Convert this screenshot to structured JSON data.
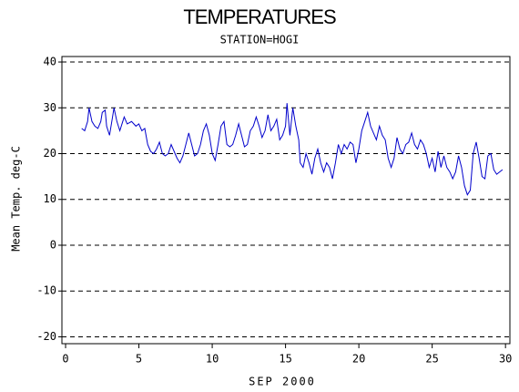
{
  "chart_data": {
    "type": "line",
    "title": "TEMPERATURES",
    "subtitle": "STATION=HOGI",
    "x_label": "SEP 2000",
    "y_label": "Mean Temp. deg-C",
    "xlim": [
      -0.25,
      30.3
    ],
    "ylim": [
      -21.5,
      41.2
    ],
    "xticks": [
      0,
      5,
      10,
      15,
      20,
      25,
      30
    ],
    "yticks": [
      -20,
      -10,
      0,
      10,
      20,
      30,
      40
    ],
    "grid": true,
    "x": [
      1.1,
      1.3,
      1.5,
      1.6,
      1.8,
      2.0,
      2.2,
      2.4,
      2.5,
      2.7,
      2.8,
      3.0,
      3.2,
      3.3,
      3.5,
      3.7,
      3.9,
      4.0,
      4.2,
      4.5,
      4.8,
      5.0,
      5.2,
      5.4,
      5.6,
      5.8,
      6.0,
      6.2,
      6.4,
      6.6,
      6.8,
      7.0,
      7.2,
      7.4,
      7.6,
      7.8,
      8.0,
      8.2,
      8.4,
      8.6,
      8.8,
      9.0,
      9.2,
      9.4,
      9.6,
      9.8,
      10.0,
      10.2,
      10.4,
      10.6,
      10.8,
      11.0,
      11.2,
      11.4,
      11.6,
      11.8,
      12.0,
      12.2,
      12.4,
      12.6,
      12.8,
      13.0,
      13.2,
      13.4,
      13.6,
      13.8,
      14.0,
      14.2,
      14.4,
      14.6,
      14.8,
      15.0,
      15.1,
      15.3,
      15.5,
      15.7,
      15.9,
      16.0,
      16.2,
      16.4,
      16.6,
      16.8,
      17.0,
      17.2,
      17.4,
      17.6,
      17.8,
      18.0,
      18.2,
      18.4,
      18.6,
      18.8,
      19.0,
      19.2,
      19.4,
      19.6,
      19.8,
      20.0,
      20.2,
      20.4,
      20.6,
      20.8,
      21.0,
      21.2,
      21.4,
      21.6,
      21.8,
      22.0,
      22.2,
      22.4,
      22.6,
      22.8,
      23.0,
      23.2,
      23.4,
      23.6,
      23.8,
      24.0,
      24.2,
      24.4,
      24.6,
      24.8,
      25.0,
      25.2,
      25.4,
      25.6,
      25.8,
      26.0,
      26.2,
      26.4,
      26.6,
      26.8,
      27.0,
      27.2,
      27.4,
      27.6,
      27.8,
      28.0,
      28.2,
      28.4,
      28.6,
      28.8,
      29.0,
      29.2,
      29.4,
      29.6,
      29.8
    ],
    "series": [
      {
        "name": "Mean Temp",
        "color": "#0000cc",
        "values": [
          25.5,
          25,
          27,
          30,
          27,
          26,
          25.5,
          27,
          29,
          29.5,
          26,
          24,
          28,
          30,
          27,
          25,
          27,
          28,
          26.5,
          27,
          26,
          26.5,
          25,
          25.5,
          22,
          20.5,
          20,
          21,
          22.5,
          20,
          19.5,
          20,
          22,
          20.5,
          19,
          18,
          19.5,
          22,
          24.5,
          22,
          19.5,
          20,
          22,
          25,
          26.5,
          24,
          20,
          18.5,
          22,
          26,
          27,
          22,
          21.5,
          22,
          24,
          26.5,
          24,
          21.5,
          22,
          25,
          26,
          28,
          26,
          23.5,
          25,
          28.5,
          25,
          26,
          27.5,
          23,
          24,
          26,
          31,
          24,
          30,
          26,
          23,
          18,
          17,
          20,
          18,
          15.5,
          19,
          21,
          18,
          16,
          18,
          17,
          14.5,
          18,
          22,
          20,
          22,
          21,
          22.5,
          22,
          18,
          21,
          25,
          27,
          29,
          26,
          24.5,
          23,
          26,
          24,
          23,
          19,
          17,
          19,
          23.5,
          21,
          20,
          22,
          22.5,
          24.5,
          22,
          21,
          23,
          22,
          20,
          17,
          19,
          16,
          20.5,
          17,
          19.5,
          17,
          16,
          14.5,
          16,
          19.5,
          17,
          13,
          11,
          12,
          20,
          22.5,
          19,
          15,
          14.5,
          19.5,
          20,
          16.5,
          15.5,
          16,
          16.5
        ]
      }
    ]
  }
}
